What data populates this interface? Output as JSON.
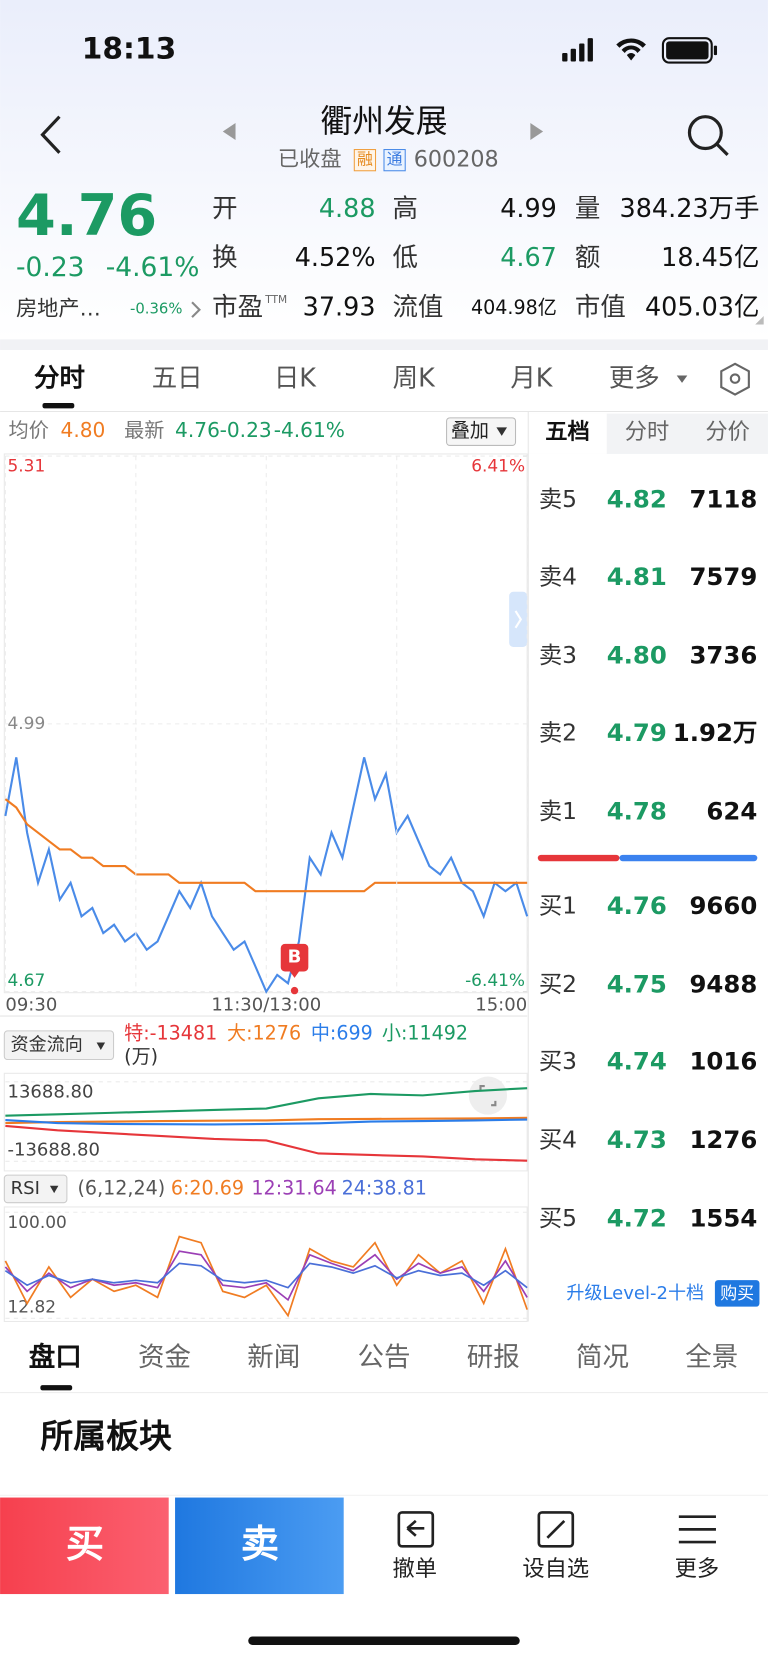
{
  "status_bar": {
    "time": "18:13"
  },
  "header": {
    "title": "衢州发展",
    "status": "已收盘",
    "badges": [
      "融",
      "通"
    ],
    "code": "600208"
  },
  "quote": {
    "price": "4.76",
    "change": "-0.23",
    "change_pct": "-4.61%",
    "sector": "房地产…",
    "sector_change": "-0.36%",
    "stats": [
      {
        "label": "开",
        "value": "4.88"
      },
      {
        "label": "高",
        "value": "4.99"
      },
      {
        "label": "量",
        "value": "384.23万手"
      },
      {
        "label": "换",
        "value": "4.52%"
      },
      {
        "label": "低",
        "value": "4.67"
      },
      {
        "label": "额",
        "value": "18.45亿"
      },
      {
        "label": "市盈",
        "label_sup": "TTM",
        "value": "37.93"
      },
      {
        "label": "流值",
        "value": "404.98亿"
      },
      {
        "label": "市值",
        "value": "405.03亿"
      }
    ]
  },
  "period_tabs": [
    "分时",
    "五日",
    "日K",
    "周K",
    "月K",
    "更多"
  ],
  "intraday": {
    "avg_value": "4.80",
    "latest_value": "4.76",
    "latest_change": "-0.23",
    "latest_change_pct": "-4.61%",
    "overlay_button": "叠加",
    "trade_marker": {
      "x": 133,
      "label": "B"
    },
    "chart_data": {
      "type": "line",
      "x": [
        0,
        5,
        10,
        15,
        20,
        25,
        30,
        35,
        40,
        45,
        50,
        55,
        60,
        65,
        70,
        75,
        80,
        85,
        90,
        95,
        100,
        105,
        110,
        115,
        120,
        125,
        130,
        135,
        140,
        145,
        150,
        155,
        160,
        165,
        170,
        175,
        180,
        185,
        190,
        195,
        200,
        205,
        210,
        215,
        220,
        225,
        230,
        235,
        240
      ],
      "xlim": [
        0,
        240
      ],
      "xticks": [
        {
          "value": 0,
          "label": "09:30"
        },
        {
          "value": 120,
          "label": "11:30/13:00"
        },
        {
          "value": 240,
          "label": "15:00"
        }
      ],
      "ylim": [
        4.67,
        5.31
      ],
      "yticks": [
        4.67,
        4.99,
        5.31
      ],
      "pct_ticks": [
        {
          "value": 4.67,
          "label": "-6.41%"
        },
        {
          "value": 5.31,
          "label": "6.41%"
        }
      ],
      "series": [
        {
          "name": "最新",
          "color": "#4a8be8",
          "values": [
            4.88,
            4.95,
            4.86,
            4.8,
            4.84,
            4.78,
            4.8,
            4.76,
            4.77,
            4.74,
            4.75,
            4.73,
            4.74,
            4.72,
            4.73,
            4.76,
            4.79,
            4.77,
            4.8,
            4.76,
            4.74,
            4.72,
            4.73,
            4.7,
            4.67,
            4.69,
            4.68,
            4.73,
            4.83,
            4.81,
            4.86,
            4.83,
            4.89,
            4.95,
            4.9,
            4.93,
            4.86,
            4.88,
            4.85,
            4.82,
            4.81,
            4.83,
            4.8,
            4.79,
            4.76,
            4.8,
            4.79,
            4.8,
            4.76
          ]
        },
        {
          "name": "均价",
          "color": "#f07c22",
          "values": [
            4.9,
            4.89,
            4.87,
            4.86,
            4.85,
            4.84,
            4.84,
            4.83,
            4.83,
            4.82,
            4.82,
            4.82,
            4.81,
            4.81,
            4.81,
            4.81,
            4.8,
            4.8,
            4.8,
            4.8,
            4.8,
            4.8,
            4.8,
            4.79,
            4.79,
            4.79,
            4.79,
            4.79,
            4.79,
            4.79,
            4.79,
            4.79,
            4.79,
            4.79,
            4.8,
            4.8,
            4.8,
            4.8,
            4.8,
            4.8,
            4.8,
            4.8,
            4.8,
            4.8,
            4.8,
            4.8,
            4.8,
            4.8,
            4.8
          ]
        }
      ]
    }
  },
  "fund_flow": {
    "selector": "资金流向",
    "unit": "(万)",
    "chart_data": {
      "type": "line",
      "x": [
        0,
        24,
        48,
        72,
        96,
        120,
        144,
        168,
        192,
        216,
        240
      ],
      "xlim": [
        0,
        240
      ],
      "ylim": [
        -13688.8,
        13688.8
      ],
      "yticks": [
        {
          "value": 13688.8,
          "label": "13688.80"
        },
        {
          "value": -13688.8,
          "label": "-13688.80"
        }
      ],
      "series": [
        {
          "name": "特:-13481",
          "color": "#e6363a",
          "values": [
            -1500,
            -3000,
            -4000,
            -5000,
            -6000,
            -6500,
            -11000,
            -11500,
            -12000,
            -13000,
            -13481
          ]
        },
        {
          "name": "大:1276",
          "color": "#f07c22",
          "values": [
            -500,
            -200,
            0,
            200,
            300,
            400,
            800,
            900,
            1000,
            1100,
            1276
          ]
        },
        {
          "name": "中:699",
          "color": "#2b7de9",
          "values": [
            500,
            -500,
            -800,
            -900,
            -1000,
            -800,
            -600,
            0,
            200,
            400,
            699
          ]
        },
        {
          "name": "小:11492",
          "color": "#1c9a63",
          "values": [
            2000,
            2500,
            3000,
            3500,
            4000,
            4500,
            8000,
            9500,
            9000,
            10500,
            11492
          ]
        }
      ]
    }
  },
  "rsi": {
    "selector": "RSI",
    "params": "(6,12,24)",
    "chart_data": {
      "type": "line",
      "x": [
        0,
        10,
        20,
        30,
        40,
        50,
        60,
        70,
        80,
        90,
        100,
        110,
        120,
        130,
        140,
        150,
        160,
        170,
        180,
        190,
        200,
        210,
        220,
        230,
        240
      ],
      "xlim": [
        0,
        240
      ],
      "ylim": [
        12.82,
        100
      ],
      "yticks": [
        {
          "value": 100,
          "label": "100.00"
        },
        12.82
      ],
      "series": [
        {
          "name": "6:20.69",
          "color": "#f07c22",
          "values": [
            60,
            25,
            55,
            30,
            45,
            35,
            40,
            30,
            80,
            75,
            35,
            30,
            40,
            15,
            70,
            60,
            55,
            75,
            40,
            65,
            50,
            60,
            25,
            70,
            20
          ]
        },
        {
          "name": "12:31.64",
          "color": "#9b3fb5",
          "values": [
            55,
            35,
            50,
            38,
            45,
            40,
            42,
            38,
            68,
            65,
            40,
            38,
            42,
            28,
            65,
            58,
            52,
            65,
            45,
            58,
            50,
            55,
            35,
            60,
            30
          ]
        },
        {
          "name": "24:38.81",
          "color": "#4a6fd8",
          "values": [
            52,
            40,
            48,
            42,
            45,
            42,
            44,
            42,
            58,
            56,
            44,
            42,
            44,
            38,
            58,
            55,
            50,
            56,
            46,
            52,
            48,
            50,
            40,
            52,
            38
          ]
        }
      ]
    }
  },
  "order_book": {
    "tabs": [
      "五档",
      "分时",
      "分价"
    ],
    "asks": [
      {
        "label": "卖5",
        "price": "4.82",
        "volume": "7118"
      },
      {
        "label": "卖4",
        "price": "4.81",
        "volume": "7579"
      },
      {
        "label": "卖3",
        "price": "4.80",
        "volume": "3736"
      },
      {
        "label": "卖2",
        "price": "4.79",
        "volume": "1.92万"
      },
      {
        "label": "卖1",
        "price": "4.78",
        "volume": "624"
      }
    ],
    "bids": [
      {
        "label": "买1",
        "price": "4.76",
        "volume": "9660"
      },
      {
        "label": "买2",
        "price": "4.75",
        "volume": "9488"
      },
      {
        "label": "买3",
        "price": "4.74",
        "volume": "1016"
      },
      {
        "label": "买4",
        "price": "4.73",
        "volume": "1276"
      },
      {
        "label": "买5",
        "price": "4.72",
        "volume": "1554"
      }
    ],
    "upgrade": "升级Level-2十档",
    "buy_button": "购买"
  },
  "detail_tabs": [
    "盘口",
    "资金",
    "新闻",
    "公告",
    "研报",
    "简况",
    "全景"
  ],
  "section_title": "所属板块",
  "actions": {
    "buy": "买",
    "sell": "卖",
    "items": [
      "撤单",
      "设自选",
      "更多"
    ]
  }
}
